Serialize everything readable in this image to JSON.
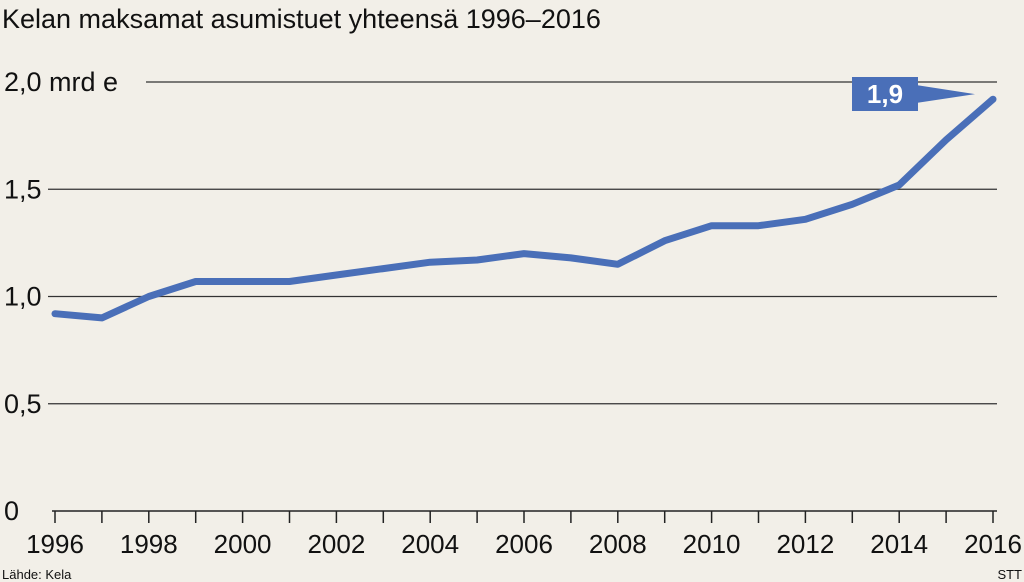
{
  "chart_data": {
    "type": "line",
    "title": "Kelan maksamat asumistuet yhteensä 1996–2016",
    "ylabel_unit": "mrd e",
    "ylim": [
      0,
      2.0
    ],
    "yticks": [
      {
        "value": 0,
        "label": "0"
      },
      {
        "value": 0.5,
        "label": "0,5"
      },
      {
        "value": 1.0,
        "label": "1,0"
      },
      {
        "value": 1.5,
        "label": "1,5"
      },
      {
        "value": 2.0,
        "label": "2,0 mrd e"
      }
    ],
    "xticks": [
      "1996",
      "1998",
      "2000",
      "2002",
      "2004",
      "2006",
      "2008",
      "2010",
      "2012",
      "2014",
      "2016"
    ],
    "x": [
      1996,
      1997,
      1998,
      1999,
      2000,
      2001,
      2002,
      2003,
      2004,
      2005,
      2006,
      2007,
      2008,
      2009,
      2010,
      2011,
      2012,
      2013,
      2014,
      2015,
      2016
    ],
    "series": [
      {
        "values": [
          0.92,
          0.9,
          1.0,
          1.07,
          1.07,
          1.07,
          1.1,
          1.13,
          1.16,
          1.17,
          1.2,
          1.18,
          1.15,
          1.26,
          1.33,
          1.33,
          1.36,
          1.43,
          1.52,
          1.73,
          1.92
        ]
      }
    ],
    "annotation": {
      "label": "1,9",
      "x": 2016,
      "value": 1.92
    },
    "grid": true,
    "colors": {
      "line": "#4a6fb8",
      "callout": "#4a6fb8",
      "background": "#f2efe8"
    }
  },
  "footer": {
    "source": "Lähde: Kela",
    "agency": "STT"
  }
}
